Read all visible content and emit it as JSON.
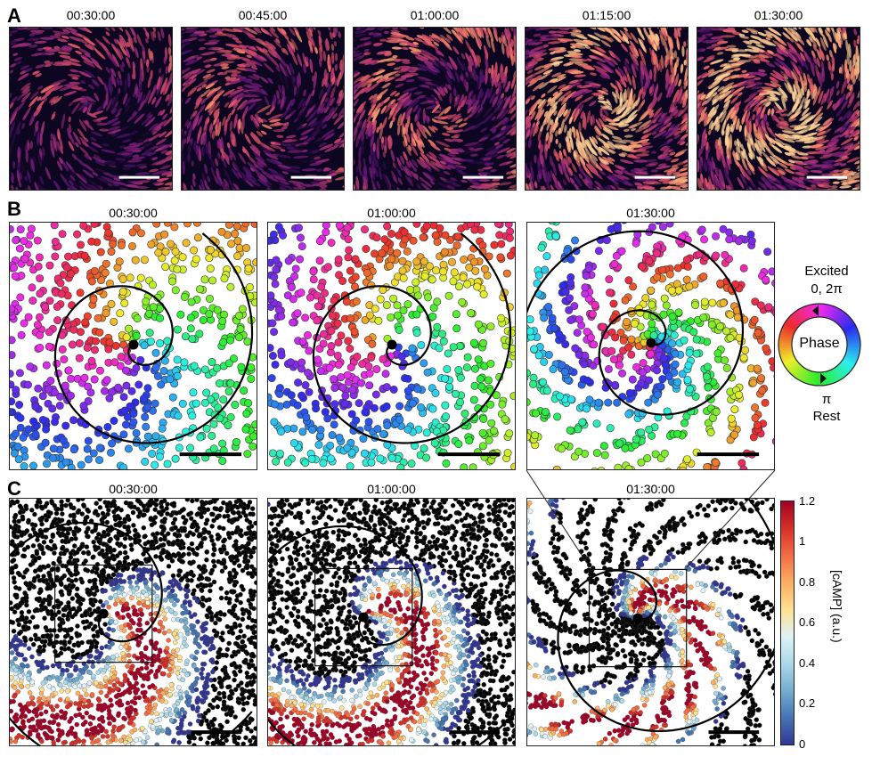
{
  "panel_labels": {
    "a": "A",
    "b": "B",
    "c": "C"
  },
  "row_a": {
    "times": [
      "00:30:00",
      "00:45:00",
      "01:00:00",
      "01:15:00",
      "01:30:00"
    ]
  },
  "row_b": {
    "times": [
      "00:30:00",
      "01:00:00",
      "01:30:00"
    ]
  },
  "row_c": {
    "times": [
      "00:30:00",
      "01:00:00",
      "01:30:00"
    ]
  },
  "phase_wheel": {
    "top_label": "Excited",
    "top_value": "0, 2π",
    "center_label": "Phase",
    "bottom_value": "π",
    "bottom_label": "Rest"
  },
  "colorbar": {
    "label": "[cAMP] (a.u.)",
    "ticks": [
      "1.2",
      "1",
      "0.8",
      "0.6",
      "0.4",
      "0.2",
      "0"
    ],
    "colors": [
      "#a50026",
      "#d73027",
      "#f46d43",
      "#fdae61",
      "#fee090",
      "#e0f3f8",
      "#abd9e9",
      "#74add1",
      "#4575b4",
      "#313695"
    ]
  },
  "colors": {
    "magma_dark": "#0d0620",
    "magma_mid": "#b5367a",
    "magma_bright": "#fcae74",
    "scalebar_dark": "#ffffff",
    "scalebar_light": "#000000"
  }
}
